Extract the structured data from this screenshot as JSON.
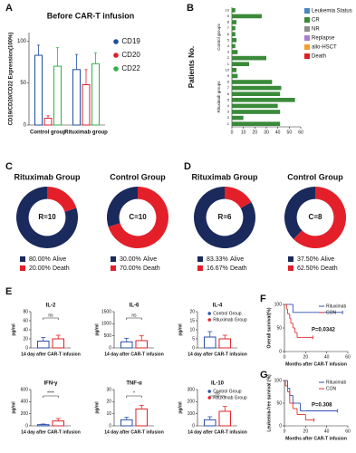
{
  "chart_data": [
    {
      "type": "bar",
      "panel": "A",
      "title": "Before CAR-T infusion",
      "y_label": "CD19/CD20/CD22 Expression(100%)",
      "categories": [
        "Control group",
        "Rituximab group"
      ],
      "series": [
        {
          "name": "CD19",
          "color": "#1f4fa0",
          "values": [
            83,
            66
          ],
          "errors": [
            12,
            18
          ]
        },
        {
          "name": "CD20",
          "color": "#e32028",
          "values": [
            8,
            48
          ],
          "errors": [
            3,
            18
          ]
        },
        {
          "name": "CD22",
          "color": "#2fb34a",
          "values": [
            70,
            73
          ],
          "errors": [
            22,
            13
          ]
        }
      ],
      "ylim": [
        0,
        110
      ],
      "yticks": [
        0,
        50,
        100
      ],
      "legend": "right"
    },
    {
      "type": "bar",
      "horizontal": true,
      "panel": "B",
      "y_label": "Patients No.",
      "group_labels": [
        "Control groups",
        "Rituximab groups"
      ],
      "categories": [
        "10",
        "9",
        "8",
        "7",
        "6",
        "5",
        "4",
        "3",
        "2",
        "1",
        "10",
        "9",
        "8",
        "7",
        "6",
        "5",
        "4",
        "3",
        "2",
        "1"
      ],
      "series": [
        {
          "color": "#3a8a3a",
          "values": [
            3,
            26,
            4,
            3,
            3,
            4,
            3,
            5,
            30,
            15,
            4,
            5,
            35,
            43,
            42,
            55,
            40,
            42,
            10,
            42
          ]
        }
      ],
      "xlim": [
        0,
        60
      ],
      "xticks": [
        0,
        10,
        20,
        30,
        40,
        50,
        60
      ],
      "legend_items": [
        {
          "name": "Leukemia Status",
          "color": "#4a84c4"
        },
        {
          "name": "CR",
          "color": "#3a8a3a"
        },
        {
          "name": "NR",
          "color": "#8c8c8c"
        },
        {
          "name": "Replapse",
          "color": "#a57fd6"
        },
        {
          "name": "allo-HSCT",
          "color": "#f0a030"
        },
        {
          "name": "Death",
          "color": "#e02020"
        }
      ]
    },
    {
      "type": "pie",
      "panel": "C",
      "title": "Rituximab Group",
      "center_label": "R=10",
      "categories": [
        "Alive",
        "Death"
      ],
      "values": [
        80,
        20
      ],
      "value_labels": [
        "80.00%",
        "20.00%"
      ],
      "colors": [
        "#1b2a5c",
        "#e3202a"
      ]
    },
    {
      "type": "pie",
      "title": "Control Group",
      "center_label": "C=10",
      "categories": [
        "Alive",
        "Death"
      ],
      "values": [
        30,
        70
      ],
      "value_labels": [
        "30.00%",
        "70.00%"
      ],
      "colors": [
        "#1b2a5c",
        "#e3202a"
      ]
    },
    {
      "type": "pie",
      "panel": "D",
      "title": "Rituximab Group",
      "center_label": "R=6",
      "categories": [
        "Alive",
        "Death"
      ],
      "values": [
        83.33,
        16.67
      ],
      "value_labels": [
        "83.33%",
        "16.67%"
      ],
      "colors": [
        "#1b2a5c",
        "#e3202a"
      ]
    },
    {
      "type": "pie",
      "title": "Control Group",
      "center_label": "C=8",
      "categories": [
        "Alive",
        "Death"
      ],
      "values": [
        37.5,
        62.5
      ],
      "value_labels": [
        "37.50%",
        "62.50%"
      ],
      "colors": [
        "#1b2a5c",
        "#e3202a"
      ]
    },
    {
      "type": "bar",
      "panel": "E",
      "title": "IL-2",
      "y_label": "pg/ml",
      "annotation": "ns",
      "categories": [
        "14 day after CAR-T infusion"
      ],
      "series": [
        {
          "name": "Control Group",
          "color": "#2a4fa8",
          "values": [
            15
          ],
          "errors": [
            8
          ]
        },
        {
          "name": "Rituximab Group",
          "color": "#e32028",
          "values": [
            20
          ],
          "errors": [
            8
          ]
        }
      ],
      "ylim": [
        0,
        80
      ],
      "yticks": [
        0,
        20,
        40,
        60,
        80
      ]
    },
    {
      "type": "bar",
      "title": "IL-6",
      "y_label": "pg/ml",
      "annotation": "ns",
      "categories": [
        "14 day after CAR-T infusion"
      ],
      "series": [
        {
          "name": "Control Group",
          "color": "#2a4fa8",
          "values": [
            250
          ],
          "errors": [
            150
          ]
        },
        {
          "name": "Rituximab Group",
          "color": "#e32028",
          "values": [
            300
          ],
          "errors": [
            200
          ]
        }
      ],
      "ylim": [
        0,
        1500
      ],
      "yticks": [
        0,
        500,
        1000,
        1500
      ]
    },
    {
      "type": "bar",
      "title": "IL-4",
      "y_label": "pg/ml",
      "categories": [
        "14 day after CAR-T infusion"
      ],
      "series": [
        {
          "name": "Control Group",
          "color": "#2a4fa8",
          "values": [
            6
          ],
          "errors": [
            3
          ]
        },
        {
          "name": "Rituximab Group",
          "color": "#e32028",
          "values": [
            5
          ],
          "errors": [
            2
          ]
        }
      ],
      "ylim": [
        0,
        20
      ],
      "yticks": [
        0,
        5,
        10,
        15,
        20
      ],
      "legend": "upper right"
    },
    {
      "type": "bar",
      "title": "IFN-γ",
      "y_label": "pg/ml",
      "annotation": "****",
      "categories": [
        "14 day after CAR-T infusion"
      ],
      "series": [
        {
          "name": "Control Group",
          "color": "#2a4fa8",
          "values": [
            20
          ],
          "errors": [
            10
          ]
        },
        {
          "name": "Rituximab Group",
          "color": "#e32028",
          "values": [
            80
          ],
          "errors": [
            40
          ]
        }
      ],
      "ylim": [
        0,
        600
      ],
      "yticks": [
        0,
        200,
        400,
        600
      ]
    },
    {
      "type": "bar",
      "title": "TNF-α",
      "y_label": "pg/ml",
      "annotation": "*",
      "categories": [
        "14 day after CAR-T infusion"
      ],
      "series": [
        {
          "name": "Control Group",
          "color": "#2a4fa8",
          "values": [
            5
          ],
          "errors": [
            2
          ]
        },
        {
          "name": "Rituximab Group",
          "color": "#e32028",
          "values": [
            14
          ],
          "errors": [
            3
          ]
        }
      ],
      "ylim": [
        0,
        30
      ],
      "yticks": [
        0,
        10,
        20,
        30
      ]
    },
    {
      "type": "bar",
      "title": "IL-10",
      "y_label": "pg/ml",
      "annotation": "ns",
      "categories": [
        "14 day after CAR-T infusion"
      ],
      "series": [
        {
          "name": "Control Group",
          "color": "#2a4fa8",
          "values": [
            50
          ],
          "errors": [
            25
          ]
        },
        {
          "name": "Rituximab Group",
          "color": "#e32028",
          "values": [
            120
          ],
          "errors": [
            40
          ]
        }
      ],
      "ylim": [
        0,
        300
      ],
      "yticks": [
        0,
        100,
        200,
        300
      ],
      "legend": "upper right"
    },
    {
      "type": "line",
      "panel": "F",
      "y_label": "Overall survival(%)",
      "x_label": "Months after CAR-T infusion",
      "annotation": "P=0.0342",
      "series": [
        {
          "name": "Rituximab",
          "color": "#2f4fb0",
          "x": [
            0,
            4,
            8,
            55
          ],
          "values": [
            100,
            100,
            83,
            83
          ]
        },
        {
          "name": "CON",
          "color": "#e83030",
          "x": [
            0,
            2,
            3,
            5,
            6,
            8,
            10,
            12,
            15,
            27
          ],
          "values": [
            100,
            90,
            80,
            70,
            60,
            50,
            40,
            30,
            30,
            30
          ]
        }
      ],
      "xlim": [
        0,
        60
      ],
      "xticks": [
        0,
        20,
        40,
        60
      ],
      "ylim": [
        0,
        100
      ],
      "yticks": [
        0,
        50,
        100
      ],
      "legend": "upper right"
    },
    {
      "type": "line",
      "panel": "G",
      "y_label": "Leukemia-free survival (%)",
      "x_label": "Months after CAR-T infusion",
      "annotation": "P=0.308",
      "series": [
        {
          "name": "Rituximab",
          "color": "#2f4fb0",
          "x": [
            0,
            3,
            5,
            8,
            15,
            20,
            50
          ],
          "values": [
            100,
            83,
            67,
            50,
            33,
            33,
            33
          ]
        },
        {
          "name": "CON",
          "color": "#e83030",
          "x": [
            0,
            1,
            3,
            5,
            8,
            12,
            20,
            28
          ],
          "values": [
            100,
            88,
            75,
            50,
            38,
            25,
            13,
            13
          ]
        }
      ],
      "xlim": [
        0,
        60
      ],
      "xticks": [
        0,
        20,
        40,
        60
      ],
      "ylim": [
        0,
        100
      ],
      "yticks": [
        0,
        50,
        100
      ],
      "legend": "upper right"
    }
  ]
}
